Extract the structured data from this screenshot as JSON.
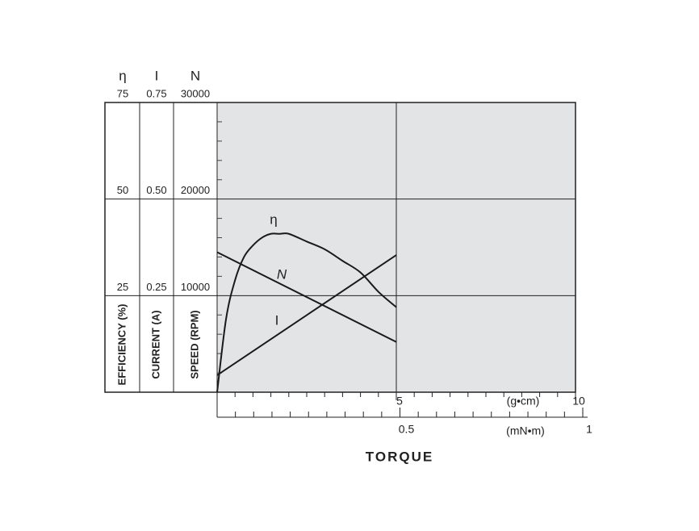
{
  "chart_data": {
    "type": "line",
    "xlabel": "TORQUE",
    "xlim": [
      0,
      10
    ],
    "xticks": [
      5,
      10
    ],
    "xunit": "(g•cm)",
    "xminorticks": [
      0.5,
      1,
      1.5,
      2,
      2.5,
      3,
      3.5,
      4,
      4.5,
      5.5,
      6,
      6.5,
      7,
      7.5,
      8,
      8.5,
      9,
      9.5
    ],
    "x2lim": [
      0,
      1
    ],
    "x2ticks": [
      0.5,
      1
    ],
    "x2unit": "(mN•m)",
    "x2minorticks": [
      0.05,
      0.1,
      0.15,
      0.2,
      0.25,
      0.3,
      0.35,
      0.4,
      0.45,
      0.55,
      0.6,
      0.65,
      0.7,
      0.75,
      0.8,
      0.85,
      0.9,
      0.95
    ],
    "y_axes": [
      {
        "symbol": "η",
        "label": "EFFICIENCY (%)",
        "lim": [
          0,
          75
        ],
        "ticks": [
          25,
          50,
          75
        ]
      },
      {
        "symbol": "I",
        "label": "CURRENT (A)",
        "lim": [
          0,
          0.75
        ],
        "ticks": [
          0.25,
          {
            "value": 0.5,
            "label": "0.50"
          },
          0.75
        ]
      },
      {
        "symbol": "N",
        "label": "SPEED (RPM)",
        "lim": [
          0,
          30000
        ],
        "ticks": [
          10000,
          20000,
          30000
        ],
        "minorticks": [
          2000,
          4000,
          6000,
          8000,
          12000,
          14000,
          16000,
          18000,
          22000,
          24000,
          26000,
          28000
        ]
      }
    ],
    "color": "#1a1a1a",
    "series": [
      {
        "name": "η",
        "axis": 0,
        "x": [
          0,
          0.25,
          0.5,
          0.75,
          1,
          1.25,
          1.5,
          1.75,
          2,
          2.5,
          3,
          3.5,
          4,
          4.5,
          5
        ],
        "values": [
          0,
          19,
          29,
          35,
          38,
          40,
          41,
          41,
          41,
          39,
          37,
          34,
          31,
          26,
          22
        ]
      },
      {
        "name": "N",
        "axis": 2,
        "x": [
          0,
          5
        ],
        "values": [
          14500,
          5200
        ]
      },
      {
        "name": "I",
        "axis": 1,
        "x": [
          0,
          5
        ],
        "values": [
          0.044,
          0.355
        ]
      }
    ]
  }
}
